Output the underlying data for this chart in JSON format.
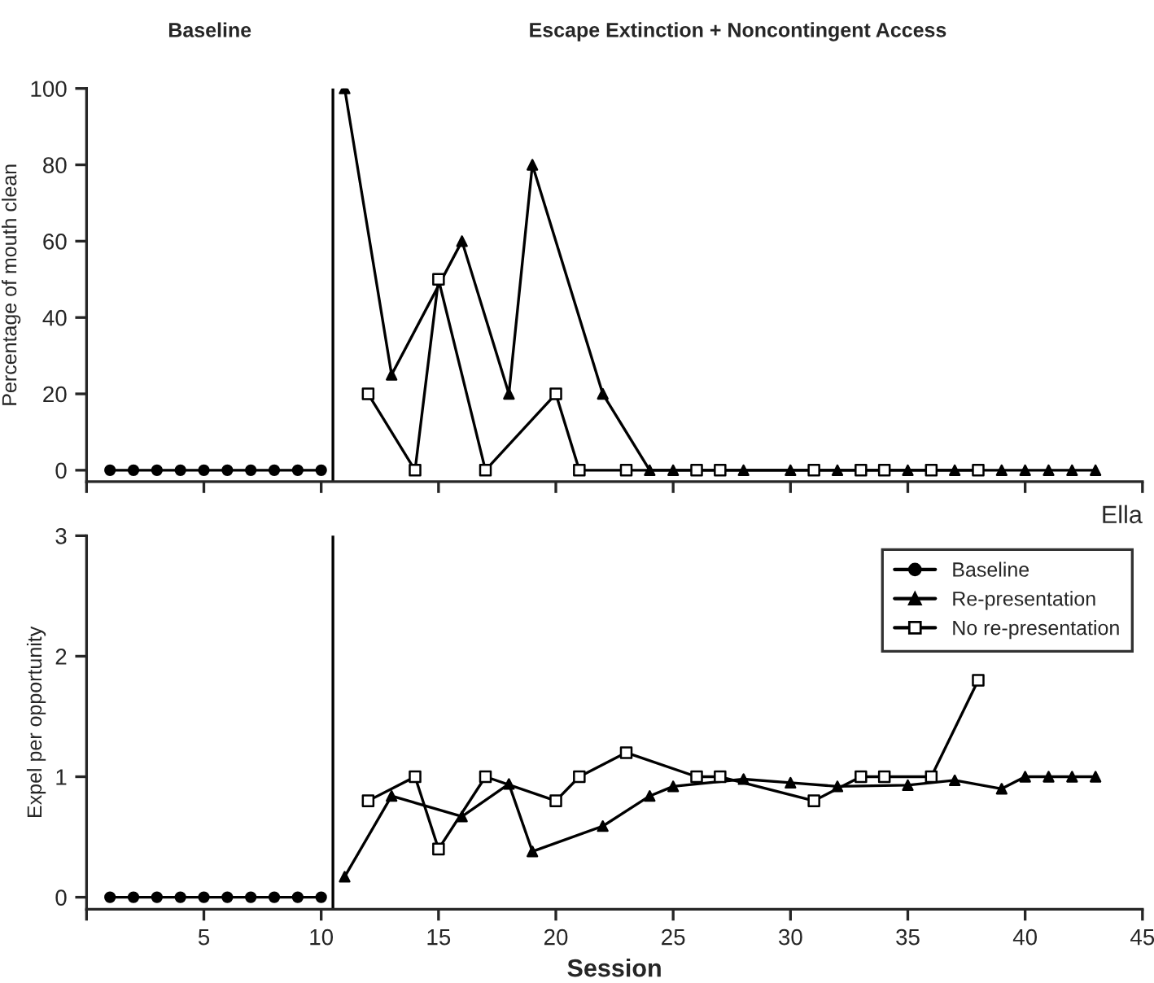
{
  "chart_data": [
    {
      "type": "line",
      "ylabel": "Percentage of mouth clean",
      "annotations": [
        "Baseline",
        "Escape Extinction + Noncontingent Access"
      ],
      "xlim": [
        0,
        45
      ],
      "xticks": [
        {
          "value": 0,
          "label": null
        },
        5,
        10,
        15,
        20,
        25,
        30,
        35,
        40,
        45
      ],
      "ylim": [
        -3,
        100
      ],
      "yticks": [
        0,
        20,
        40,
        60,
        80,
        100
      ],
      "tick_labels": "y",
      "grid": false,
      "legend": false,
      "ref_lines": [
        {
          "axis": "x",
          "value": 10.5,
          "color": "#000000"
        }
      ],
      "series": [
        {
          "color": "#000000",
          "marker": "circle",
          "x": [
            1,
            2,
            3,
            4,
            5,
            6,
            7,
            8,
            9,
            10
          ],
          "values": [
            0,
            0,
            0,
            0,
            0,
            0,
            0,
            0,
            0,
            0
          ]
        },
        {
          "color": "#000000",
          "marker": "triangle",
          "x": [
            11,
            13,
            16,
            18,
            19,
            22,
            24,
            25,
            28,
            30,
            32,
            35,
            37,
            39,
            40,
            41,
            42,
            43
          ],
          "values": [
            100,
            25,
            60,
            20,
            80,
            20,
            0,
            0,
            0,
            0,
            0,
            0,
            0,
            0,
            0,
            0,
            0,
            0
          ]
        },
        {
          "color": "#000000",
          "marker": "square",
          "x": [
            12,
            14,
            15,
            17,
            20,
            21,
            23,
            26,
            27,
            31,
            33,
            34,
            36,
            38
          ],
          "values": [
            20,
            0,
            50,
            0,
            20,
            0,
            0,
            0,
            0,
            0,
            0,
            0,
            0,
            0
          ]
        }
      ]
    },
    {
      "type": "line",
      "xlabel": "Session",
      "ylabel": "Expel per opportunity",
      "annotations": [
        "Ella"
      ],
      "xlim": [
        0,
        45
      ],
      "xticks": [
        {
          "value": 0,
          "label": null
        },
        5,
        10,
        15,
        20,
        25,
        30,
        35,
        40,
        45
      ],
      "ylim": [
        -0.1,
        3
      ],
      "yticks": [
        0,
        1,
        2,
        3
      ],
      "grid": false,
      "legend": "top right",
      "ref_lines": [
        {
          "axis": "x",
          "value": 10.5,
          "color": "#000000"
        }
      ],
      "series": [
        {
          "name": "Baseline",
          "color": "#000000",
          "marker": "circle",
          "x": [
            1,
            2,
            3,
            4,
            5,
            6,
            7,
            8,
            9,
            10
          ],
          "values": [
            0,
            0,
            0,
            0,
            0,
            0,
            0,
            0,
            0,
            0
          ]
        },
        {
          "name": "Re-presentation",
          "color": "#000000",
          "marker": "triangle",
          "x": [
            11,
            13,
            16,
            18,
            19,
            22,
            24,
            25,
            28,
            30,
            32,
            35,
            37,
            39,
            40,
            41,
            42,
            43
          ],
          "values": [
            0.17,
            0.84,
            0.67,
            0.94,
            0.38,
            0.59,
            0.84,
            0.92,
            0.98,
            0.95,
            0.92,
            0.93,
            0.97,
            0.9,
            1,
            1,
            1,
            1
          ]
        },
        {
          "name": "No re-presentation",
          "color": "#000000",
          "marker": "square",
          "x": [
            12,
            14,
            15,
            17,
            20,
            21,
            23,
            26,
            27,
            31,
            33,
            34,
            36,
            38
          ],
          "values": [
            0.8,
            1.0,
            0.4,
            1.0,
            0.8,
            1.0,
            1.2,
            1.0,
            1.0,
            0.8,
            1.0,
            1.0,
            1.0,
            1.8
          ]
        }
      ]
    }
  ]
}
